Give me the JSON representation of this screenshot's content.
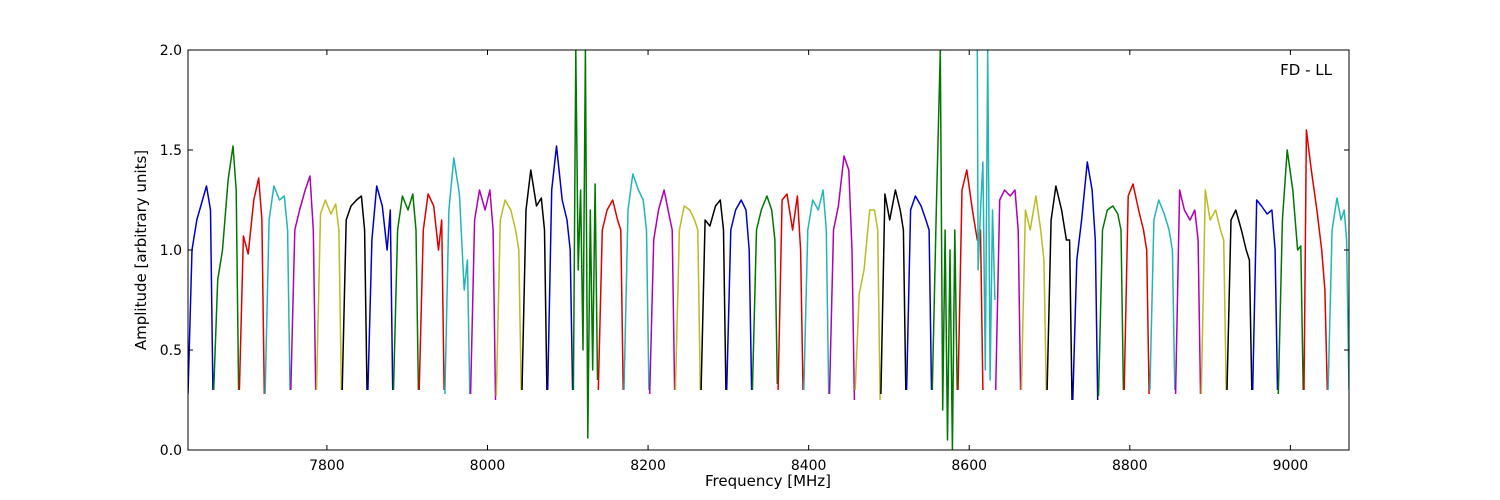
{
  "chart_data": {
    "type": "line",
    "title": "",
    "annotation": "FD - LL",
    "xlabel": "Frequency [MHz]",
    "ylabel": "Amplitude [arbitrary units]",
    "xlim": [
      7627,
      9073
    ],
    "ylim": [
      0.0,
      2.0
    ],
    "grid": false,
    "legend": "none",
    "x_ticks": [
      7800,
      8000,
      8200,
      8400,
      8600,
      8800,
      9000
    ],
    "y_ticks": [
      0.0,
      0.5,
      1.0,
      1.5,
      2.0
    ],
    "x_tick_labels": [
      "7800",
      "8000",
      "8200",
      "8400",
      "8600",
      "8800",
      "9000"
    ],
    "y_tick_labels": [
      "0.0",
      "0.5",
      "1.0",
      "1.5",
      "2.0"
    ],
    "channel_width_mhz": 32,
    "color_cycle": [
      "#0000cc",
      "#007700",
      "#dd0000",
      "#22b5b5",
      "#b000b0",
      "#bbbb22",
      "#000000"
    ],
    "series": [
      {
        "x": [
          7627,
          7632,
          7638,
          7645,
          7650,
          7655,
          7658
        ],
        "y": [
          0.28,
          1.0,
          1.15,
          1.25,
          1.32,
          1.2,
          0.3
        ]
      },
      {
        "x": [
          7659,
          7664,
          7670,
          7677,
          7683,
          7687,
          7690
        ],
        "y": [
          0.3,
          0.85,
          1.0,
          1.35,
          1.52,
          1.3,
          0.3
        ]
      },
      {
        "x": [
          7691,
          7696,
          7702,
          7709,
          7715,
          7719,
          7722
        ],
        "y": [
          0.3,
          1.07,
          0.98,
          1.25,
          1.36,
          1.15,
          0.28
        ]
      },
      {
        "x": [
          7723,
          7728,
          7734,
          7741,
          7747,
          7751,
          7754
        ],
        "y": [
          0.28,
          1.15,
          1.32,
          1.25,
          1.27,
          1.1,
          0.3
        ]
      },
      {
        "x": [
          7755,
          7760,
          7766,
          7773,
          7779,
          7783,
          7786
        ],
        "y": [
          0.3,
          1.1,
          1.2,
          1.3,
          1.37,
          1.1,
          0.3
        ]
      },
      {
        "x": [
          7787,
          7792,
          7798,
          7805,
          7811,
          7815,
          7818
        ],
        "y": [
          0.3,
          1.18,
          1.25,
          1.18,
          1.23,
          1.1,
          0.3
        ]
      },
      {
        "x": [
          7819,
          7824,
          7830,
          7837,
          7843,
          7847,
          7850
        ],
        "y": [
          0.3,
          1.15,
          1.22,
          1.25,
          1.27,
          1.1,
          0.3
        ]
      },
      {
        "x": [
          7851,
          7856,
          7862,
          7869,
          7875,
          7879,
          7882
        ],
        "y": [
          0.3,
          1.05,
          1.32,
          1.22,
          1.0,
          1.2,
          0.3
        ]
      },
      {
        "x": [
          7883,
          7888,
          7894,
          7901,
          7907,
          7911,
          7914
        ],
        "y": [
          0.3,
          1.1,
          1.27,
          1.2,
          1.28,
          1.1,
          0.3
        ]
      },
      {
        "x": [
          7915,
          7920,
          7926,
          7933,
          7939,
          7943,
          7946
        ],
        "y": [
          0.3,
          1.1,
          1.28,
          1.22,
          1.0,
          1.15,
          0.3
        ]
      },
      {
        "x": [
          7947,
          7952,
          7958,
          7965,
          7971,
          7975,
          7978
        ],
        "y": [
          0.28,
          1.2,
          1.46,
          1.28,
          0.8,
          0.95,
          0.28
        ]
      },
      {
        "x": [
          7979,
          7984,
          7990,
          7997,
          8003,
          8007,
          8010
        ],
        "y": [
          0.28,
          1.15,
          1.3,
          1.2,
          1.3,
          1.1,
          0.25
        ]
      },
      {
        "x": [
          8011,
          8016,
          8022,
          8029,
          8035,
          8039,
          8042
        ],
        "y": [
          0.27,
          1.15,
          1.25,
          1.2,
          1.1,
          1.0,
          0.3
        ]
      },
      {
        "x": [
          8043,
          8048,
          8054,
          8061,
          8067,
          8071,
          8074
        ],
        "y": [
          0.3,
          1.2,
          1.4,
          1.22,
          1.26,
          1.1,
          0.3
        ]
      },
      {
        "x": [
          8075,
          8080,
          8086,
          8093,
          8099,
          8103,
          8106
        ],
        "y": [
          0.3,
          1.3,
          1.52,
          1.25,
          1.15,
          1.0,
          0.3
        ]
      },
      {
        "x": [
          8107,
          8110,
          8113,
          8116,
          8119,
          8122,
          8125,
          8128,
          8131,
          8134,
          8137
        ],
        "y": [
          0.3,
          2.0,
          0.9,
          1.3,
          0.5,
          2.0,
          0.06,
          1.2,
          0.4,
          1.33,
          0.35
        ]
      },
      {
        "x": [
          8138,
          8143,
          8149,
          8156,
          8162,
          8166,
          8169
        ],
        "y": [
          0.3,
          1.1,
          1.2,
          1.25,
          1.15,
          1.1,
          0.3
        ]
      },
      {
        "x": [
          8170,
          8175,
          8181,
          8188,
          8194,
          8198,
          8201
        ],
        "y": [
          0.3,
          1.2,
          1.38,
          1.3,
          1.25,
          1.1,
          0.3
        ]
      },
      {
        "x": [
          8202,
          8207,
          8213,
          8220,
          8226,
          8230,
          8233
        ],
        "y": [
          0.28,
          1.05,
          1.2,
          1.3,
          1.18,
          1.1,
          0.3
        ]
      },
      {
        "x": [
          8234,
          8239,
          8245,
          8252,
          8258,
          8262,
          8265
        ],
        "y": [
          0.3,
          1.1,
          1.22,
          1.2,
          1.15,
          1.1,
          0.3
        ]
      },
      {
        "x": [
          8266,
          8271,
          8277,
          8284,
          8290,
          8294,
          8297
        ],
        "y": [
          0.3,
          1.15,
          1.12,
          1.22,
          1.25,
          1.1,
          0.3
        ]
      },
      {
        "x": [
          8298,
          8303,
          8309,
          8316,
          8322,
          8326,
          8329
        ],
        "y": [
          0.3,
          1.1,
          1.2,
          1.25,
          1.2,
          1.0,
          0.3
        ]
      },
      {
        "x": [
          8330,
          8335,
          8341,
          8348,
          8354,
          8358,
          8361
        ],
        "y": [
          0.3,
          1.1,
          1.2,
          1.27,
          1.2,
          1.05,
          0.33
        ]
      },
      {
        "x": [
          8362,
          8367,
          8373,
          8380,
          8386,
          8390,
          8393
        ],
        "y": [
          0.3,
          1.25,
          1.28,
          1.1,
          1.27,
          1.0,
          0.3
        ]
      },
      {
        "x": [
          8394,
          8399,
          8405,
          8412,
          8418,
          8422,
          8425
        ],
        "y": [
          0.3,
          1.1,
          1.25,
          1.2,
          1.3,
          1.1,
          0.28
        ]
      },
      {
        "x": [
          8426,
          8431,
          8437,
          8444,
          8450,
          8454,
          8457
        ],
        "y": [
          0.28,
          1.1,
          1.22,
          1.47,
          1.4,
          1.0,
          0.25
        ]
      },
      {
        "x": [
          8458,
          8463,
          8469,
          8476,
          8482,
          8486,
          8489
        ],
        "y": [
          0.3,
          0.78,
          0.9,
          1.2,
          1.2,
          1.1,
          0.25
        ]
      },
      {
        "x": [
          8490,
          8495,
          8501,
          8508,
          8514,
          8518,
          8521
        ],
        "y": [
          0.28,
          1.28,
          1.15,
          1.3,
          1.2,
          1.1,
          0.3
        ]
      },
      {
        "x": [
          8522,
          8527,
          8533,
          8540,
          8546,
          8550,
          8553
        ],
        "y": [
          0.3,
          1.2,
          1.27,
          1.22,
          1.15,
          1.1,
          0.3
        ]
      },
      {
        "x": [
          8554,
          8559,
          8564,
          8567,
          8570,
          8573,
          8576,
          8579,
          8582,
          8585
        ],
        "y": [
          0.3,
          1.2,
          2.0,
          0.2,
          1.1,
          0.05,
          1.0,
          0.0,
          1.1,
          0.3
        ]
      },
      {
        "x": [
          8586,
          8591,
          8597,
          8604,
          8610,
          8614,
          8617
        ],
        "y": [
          0.3,
          1.3,
          1.4,
          1.2,
          1.05,
          1.1,
          0.3
        ]
      },
      {
        "x": [
          8610,
          8611,
          8614,
          8617,
          8620,
          8623,
          8626,
          8629,
          8632
        ],
        "y": [
          2.0,
          0.9,
          1.2,
          1.44,
          0.4,
          2.0,
          0.35,
          1.2,
          0.75
        ]
      },
      {
        "x": [
          8633,
          8638,
          8644,
          8651,
          8657,
          8661,
          8664
        ],
        "y": [
          0.3,
          1.25,
          1.3,
          1.27,
          1.3,
          1.1,
          0.3
        ]
      },
      {
        "x": [
          8665,
          8670,
          8676,
          8683,
          8689,
          8693,
          8696
        ],
        "y": [
          0.3,
          1.2,
          1.1,
          1.27,
          1.1,
          0.95,
          0.3
        ]
      },
      {
        "x": [
          8697,
          8702,
          8708,
          8715,
          8721,
          8725,
          8728
        ],
        "y": [
          0.3,
          1.15,
          1.32,
          1.2,
          1.05,
          1.05,
          0.25
        ]
      },
      {
        "x": [
          8729,
          8734,
          8740,
          8747,
          8753,
          8757,
          8760
        ],
        "y": [
          0.25,
          0.95,
          1.15,
          1.44,
          1.3,
          1.05,
          0.25
        ]
      },
      {
        "x": [
          8761,
          8766,
          8772,
          8779,
          8785,
          8789,
          8792
        ],
        "y": [
          0.27,
          1.1,
          1.2,
          1.22,
          1.18,
          1.1,
          0.3
        ]
      },
      {
        "x": [
          8793,
          8798,
          8804,
          8811,
          8817,
          8821,
          8824
        ],
        "y": [
          0.3,
          1.27,
          1.33,
          1.2,
          1.1,
          1.0,
          0.28
        ]
      },
      {
        "x": [
          8825,
          8830,
          8836,
          8843,
          8849,
          8853,
          8856
        ],
        "y": [
          0.3,
          1.15,
          1.25,
          1.18,
          1.1,
          1.0,
          0.3
        ]
      },
      {
        "x": [
          8857,
          8862,
          8868,
          8875,
          8881,
          8885,
          8888
        ],
        "y": [
          0.28,
          1.3,
          1.2,
          1.15,
          1.2,
          1.05,
          0.28
        ]
      },
      {
        "x": [
          8889,
          8894,
          8900,
          8907,
          8913,
          8917,
          8920
        ],
        "y": [
          0.28,
          1.3,
          1.15,
          1.2,
          1.1,
          1.05,
          0.3
        ]
      },
      {
        "x": [
          8921,
          8926,
          8932,
          8939,
          8945,
          8949,
          8952
        ],
        "y": [
          0.3,
          1.15,
          1.2,
          1.1,
          1.0,
          0.95,
          0.3
        ]
      },
      {
        "x": [
          8953,
          8958,
          8964,
          8971,
          8977,
          8981,
          8984
        ],
        "y": [
          0.3,
          1.25,
          1.22,
          1.18,
          1.2,
          1.0,
          0.3
        ]
      },
      {
        "x": [
          8985,
          8990,
          8996,
          9003,
          9009,
          9013,
          9016
        ],
        "y": [
          0.28,
          1.15,
          1.5,
          1.3,
          1.0,
          1.02,
          0.3
        ]
      },
      {
        "x": [
          9017,
          9020,
          9026,
          9033,
          9039,
          9043,
          9046
        ],
        "y": [
          0.3,
          1.6,
          1.4,
          1.2,
          1.0,
          0.8,
          0.3
        ]
      },
      {
        "x": [
          9047,
          9052,
          9058,
          9063,
          9067,
          9070,
          9073
        ],
        "y": [
          0.3,
          1.1,
          1.26,
          1.15,
          1.2,
          1.05,
          0.3
        ]
      }
    ]
  }
}
